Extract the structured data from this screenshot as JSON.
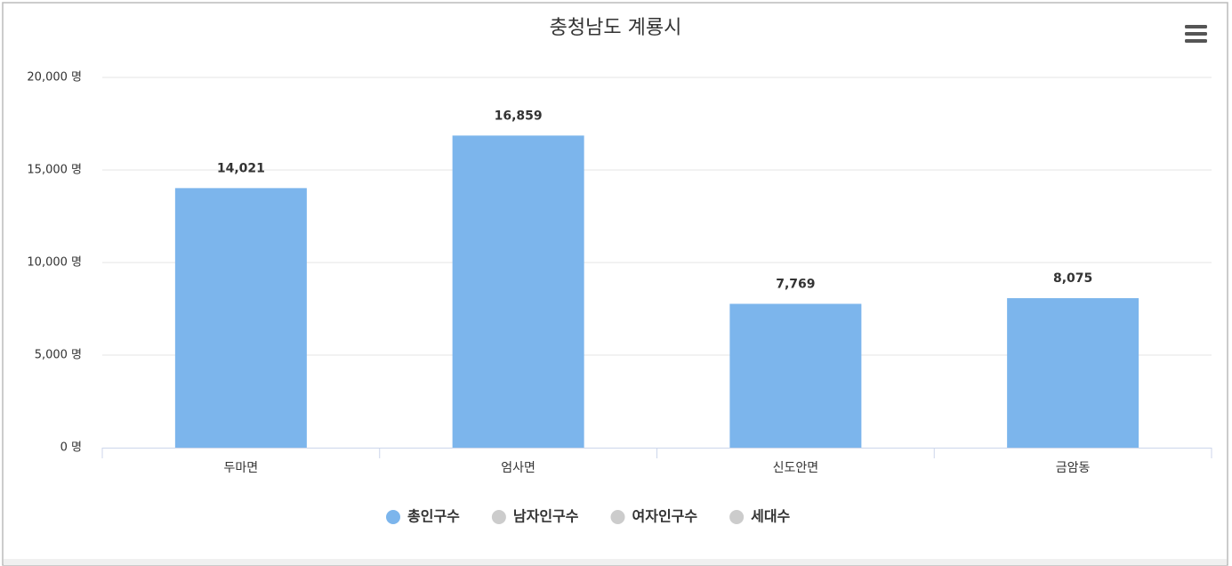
{
  "chart_data": {
    "type": "bar",
    "title": "충청남도 계룡시",
    "categories": [
      "두마면",
      "엄사면",
      "신도안면",
      "금암동"
    ],
    "series": [
      {
        "name": "총인구수",
        "color": "#7cb5ec",
        "visible": true,
        "values": [
          14021,
          16859,
          7769,
          8075
        ],
        "value_labels": [
          "14,021",
          "16,859",
          "7,769",
          "8,075"
        ]
      },
      {
        "name": "남자인구수",
        "visible": false
      },
      {
        "name": "여자인구수",
        "visible": false
      },
      {
        "name": "세대수",
        "visible": false
      }
    ],
    "hidden_legend_color": "#cccccc",
    "ylim": [
      0,
      20000
    ],
    "yticks": [
      {
        "value": 0,
        "label": "0 명"
      },
      {
        "value": 5000,
        "label": "5,000 명"
      },
      {
        "value": 10000,
        "label": "10,000 명"
      },
      {
        "value": 15000,
        "label": "15,000 명"
      },
      {
        "value": 20000,
        "label": "20,000 명"
      }
    ],
    "grid": true,
    "legend": "bottom"
  }
}
